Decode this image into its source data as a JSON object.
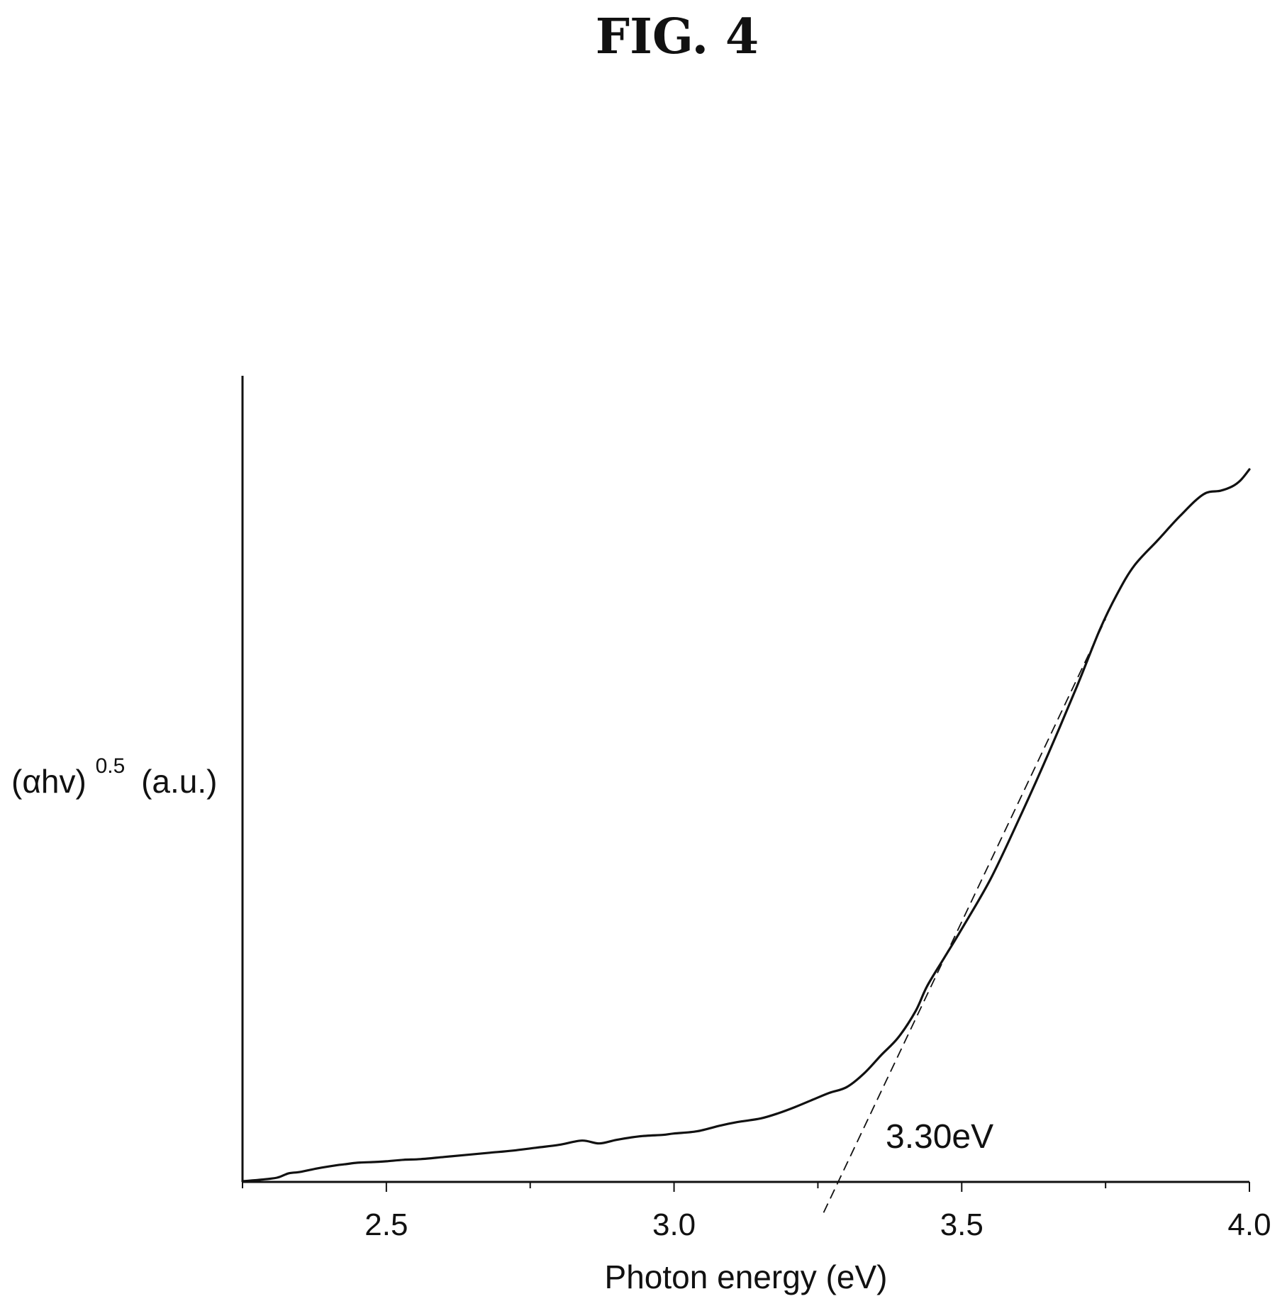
{
  "figure": {
    "title": "FIG. 4"
  },
  "chart_data": {
    "type": "line",
    "title": "FIG. 4",
    "xlabel": "Photon energy (eV)",
    "ylabel": {
      "base": "(αhv)",
      "exponent": "0.5",
      "unit": "(a.u.)"
    },
    "xlim": [
      2.25,
      4.0
    ],
    "ylim": [
      0,
      100
    ],
    "x_ticks_major": [
      2.5,
      3.0,
      3.5,
      4.0
    ],
    "x_tick_labels": [
      "2.5",
      "3.0",
      "3.5",
      "4.0"
    ],
    "x_ticks_minor": [
      2.25,
      2.75,
      3.25,
      3.75
    ],
    "y_ticks_shown": false,
    "grid": false,
    "series": [
      {
        "x": [
          2.25,
          2.28,
          2.31,
          2.33,
          2.35,
          2.38,
          2.41,
          2.43,
          2.45,
          2.48,
          2.5,
          2.53,
          2.56,
          2.6,
          2.64,
          2.68,
          2.72,
          2.76,
          2.8,
          2.84,
          2.87,
          2.9,
          2.94,
          2.98,
          3.0,
          3.04,
          3.08,
          3.11,
          3.15,
          3.18,
          3.21,
          3.24,
          3.27,
          3.3,
          3.33,
          3.36,
          3.39,
          3.42,
          3.44,
          3.47,
          3.5,
          3.55,
          3.6,
          3.65,
          3.7,
          3.74,
          3.77,
          3.8,
          3.84,
          3.88,
          3.92,
          3.95,
          3.97,
          3.985,
          4.0
        ],
        "y": [
          0.1,
          0.3,
          0.6,
          1.2,
          1.4,
          1.9,
          2.3,
          2.5,
          2.7,
          2.8,
          2.9,
          3.1,
          3.2,
          3.5,
          3.8,
          4.1,
          4.4,
          4.8,
          5.2,
          5.8,
          5.4,
          5.9,
          6.4,
          6.6,
          6.8,
          7.1,
          7.9,
          8.4,
          8.9,
          9.6,
          10.5,
          11.5,
          12.5,
          13.3,
          15.2,
          17.8,
          20.3,
          24.0,
          27.5,
          31.5,
          35.5,
          42.5,
          51.0,
          60.0,
          69.5,
          77.5,
          82.5,
          86.5,
          90.0,
          93.5,
          96.5,
          97.0,
          97.6,
          98.5,
          100.0
        ]
      }
    ],
    "fit_line": {
      "x": [
        3.26,
        3.75
      ],
      "y": [
        -4.3,
        79.0
      ]
    },
    "annotation": {
      "text": "3.30eV",
      "x": 3.3,
      "y": 0
    }
  }
}
